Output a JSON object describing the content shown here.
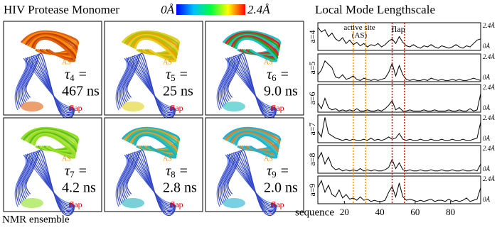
{
  "title": "HIV Protease Monomer",
  "colorbar": {
    "min_label": "0Å",
    "max_label": "2.4Å"
  },
  "panels": [
    {
      "symbol": "τ",
      "index": "4",
      "relation": "=",
      "value": "467 ns",
      "site_label": "AS",
      "flap_label": "flap"
    },
    {
      "symbol": "τ",
      "index": "5",
      "relation": "=",
      "value": "25 ns",
      "site_label": "AS",
      "flap_label": "flap"
    },
    {
      "symbol": "τ",
      "index": "6",
      "relation": "=",
      "value": "9.0 ns",
      "site_label": "AS",
      "flap_label": "flap"
    },
    {
      "symbol": "τ",
      "index": "7",
      "relation": "=",
      "value": "4.2 ns",
      "site_label": "AS",
      "flap_label": "flap"
    },
    {
      "symbol": "τ",
      "index": "8",
      "relation": "=",
      "value": "2.8 ns",
      "site_label": "AS",
      "flap_label": "flap"
    },
    {
      "symbol": "τ",
      "index": "9",
      "relation": "=",
      "value": "2.0 ns",
      "site_label": "AS",
      "flap_label": "flap"
    }
  ],
  "ensemble_label": "NMR ensemble",
  "right_title": "Local Mode Lengthscale",
  "chart_data": [
    {
      "type": "line",
      "ylabel": "a=4",
      "color": "#000000",
      "x": [
        5,
        7,
        9,
        11,
        13,
        15,
        17,
        19,
        21,
        23,
        25,
        27,
        29,
        31,
        33,
        35,
        37,
        39,
        41,
        43,
        45,
        47,
        49,
        51,
        53,
        55,
        57,
        59,
        61,
        63,
        65,
        67,
        69,
        71,
        73,
        75,
        77,
        79,
        81,
        83,
        85,
        87,
        89,
        91,
        93,
        95,
        97
      ],
      "values": [
        2.0,
        1.6,
        1.8,
        1.2,
        1.5,
        1.0,
        0.8,
        1.1,
        0.6,
        0.9,
        0.5,
        0.7,
        0.4,
        0.6,
        0.3,
        0.5,
        0.4,
        0.6,
        0.3,
        0.5,
        0.8,
        1.0,
        0.6,
        1.2,
        0.7,
        0.4,
        0.3,
        0.5,
        0.3,
        0.2,
        0.4,
        0.3,
        0.5,
        0.3,
        0.2,
        0.4,
        0.3,
        0.2,
        0.3,
        0.5,
        0.3,
        0.2,
        0.4,
        0.3,
        0.6,
        0.9,
        1.0
      ],
      "xlim": [
        5,
        97
      ],
      "ylim": [
        0,
        2.4
      ],
      "yticks": [
        {
          "value": 0,
          "label": "0Å"
        },
        {
          "value": 2.4,
          "label": "2.4Å"
        }
      ],
      "annotations": [
        {
          "text": "active site (AS)",
          "x": [
            25,
            32
          ],
          "color": "#ff8c00"
        },
        {
          "text": "flap",
          "x": [
            47,
            54
          ],
          "color": "#e00000"
        }
      ]
    },
    {
      "type": "line",
      "ylabel": "a=5",
      "color": "#000000",
      "x": [
        5,
        7,
        9,
        11,
        13,
        15,
        17,
        19,
        21,
        23,
        25,
        27,
        29,
        31,
        33,
        35,
        37,
        39,
        41,
        43,
        45,
        47,
        49,
        51,
        53,
        55,
        57,
        59,
        61,
        63,
        65,
        67,
        69,
        71,
        73,
        75,
        77,
        79,
        81,
        83,
        85,
        87,
        89,
        91,
        93,
        95,
        97
      ],
      "values": [
        0.6,
        1.0,
        1.8,
        1.5,
        1.2,
        0.4,
        0.3,
        0.6,
        0.2,
        0.3,
        0.5,
        0.2,
        0.1,
        0.3,
        0.2,
        0.1,
        0.2,
        0.1,
        0.2,
        0.3,
        0.8,
        1.6,
        0.5,
        1.4,
        0.6,
        0.2,
        0.1,
        0.2,
        0.1,
        0.1,
        0.2,
        0.1,
        0.3,
        0.2,
        0.1,
        0.2,
        0.1,
        0.1,
        0.2,
        0.1,
        0.2,
        0.1,
        0.1,
        0.2,
        0.3,
        0.2,
        0.1
      ],
      "xlim": [
        5,
        97
      ],
      "ylim": [
        0,
        2.4
      ],
      "yticks": [
        {
          "value": 0,
          "label": "0Å"
        },
        {
          "value": 2.4,
          "label": "2.4Å"
        }
      ]
    },
    {
      "type": "line",
      "ylabel": "a=6",
      "color": "#000000",
      "x": [
        5,
        7,
        9,
        11,
        13,
        15,
        17,
        19,
        21,
        23,
        25,
        27,
        29,
        31,
        33,
        35,
        37,
        39,
        41,
        43,
        45,
        47,
        49,
        51,
        53,
        55,
        57,
        59,
        61,
        63,
        65,
        67,
        69,
        71,
        73,
        75,
        77,
        79,
        81,
        83,
        85,
        87,
        89,
        91,
        93,
        95,
        97
      ],
      "values": [
        0.8,
        0.3,
        1.2,
        0.4,
        0.2,
        0.3,
        0.1,
        0.2,
        0.1,
        0.2,
        0.1,
        0.3,
        0.1,
        0.1,
        0.2,
        0.1,
        0.1,
        0.2,
        0.1,
        0.3,
        0.6,
        1.0,
        0.2,
        0.4,
        0.1,
        0.1,
        0.2,
        0.1,
        0.1,
        0.1,
        0.2,
        0.1,
        0.1,
        0.2,
        0.1,
        0.1,
        0.1,
        0.2,
        0.1,
        0.1,
        0.2,
        0.1,
        0.1,
        0.3,
        0.1,
        0.2,
        1.6
      ],
      "xlim": [
        5,
        97
      ],
      "ylim": [
        0,
        2.4
      ],
      "yticks": [
        {
          "value": 0,
          "label": "0Å"
        },
        {
          "value": 2.4,
          "label": "2.4Å"
        }
      ]
    },
    {
      "type": "line",
      "ylabel": "a=7",
      "color": "#000000",
      "x": [
        5,
        7,
        9,
        11,
        13,
        15,
        17,
        19,
        21,
        23,
        25,
        27,
        29,
        31,
        33,
        35,
        37,
        39,
        41,
        43,
        45,
        47,
        49,
        51,
        53,
        55,
        57,
        59,
        61,
        63,
        65,
        67,
        69,
        71,
        73,
        75,
        77,
        79,
        81,
        83,
        85,
        87,
        89,
        91,
        93,
        95,
        97
      ],
      "values": [
        1.0,
        0.5,
        2.2,
        0.8,
        0.6,
        0.4,
        0.3,
        0.2,
        0.3,
        0.2,
        0.3,
        0.2,
        0.2,
        0.3,
        0.2,
        0.4,
        0.2,
        0.3,
        0.2,
        0.3,
        0.5,
        0.3,
        0.4,
        0.8,
        0.3,
        0.2,
        0.3,
        0.2,
        0.2,
        0.3,
        0.2,
        0.2,
        0.3,
        0.2,
        0.2,
        0.3,
        0.2,
        0.2,
        0.3,
        0.2,
        0.2,
        0.3,
        0.2,
        0.2,
        0.3,
        0.4,
        1.8
      ],
      "xlim": [
        5,
        97
      ],
      "ylim": [
        0,
        2.4
      ],
      "yticks": [
        {
          "value": 0,
          "label": "0Å"
        },
        {
          "value": 2.4,
          "label": "2.4Å"
        }
      ]
    },
    {
      "type": "line",
      "ylabel": "a=8",
      "color": "#000000",
      "x": [
        5,
        7,
        9,
        11,
        13,
        15,
        17,
        19,
        21,
        23,
        25,
        27,
        29,
        31,
        33,
        35,
        37,
        39,
        41,
        43,
        45,
        47,
        49,
        51,
        53,
        55,
        57,
        59,
        61,
        63,
        65,
        67,
        69,
        71,
        73,
        75,
        77,
        79,
        81,
        83,
        85,
        87,
        89,
        91,
        93,
        95,
        97
      ],
      "values": [
        1.2,
        1.8,
        0.8,
        1.4,
        0.6,
        0.3,
        0.4,
        0.2,
        0.3,
        0.2,
        0.3,
        0.2,
        0.4,
        0.2,
        0.3,
        0.2,
        0.3,
        0.2,
        0.2,
        0.3,
        0.5,
        1.2,
        0.4,
        0.9,
        0.3,
        0.2,
        0.3,
        0.2,
        0.2,
        0.3,
        0.2,
        0.2,
        0.3,
        0.2,
        0.2,
        0.3,
        0.2,
        0.2,
        0.3,
        0.2,
        0.2,
        0.3,
        0.2,
        0.2,
        0.3,
        0.2,
        0.8
      ],
      "xlim": [
        5,
        97
      ],
      "ylim": [
        0,
        2.4
      ],
      "yticks": [
        {
          "value": 0,
          "label": "0Å"
        },
        {
          "value": 2.4,
          "label": "2.4Å"
        }
      ]
    },
    {
      "type": "line",
      "ylabel": "a=9",
      "color": "#000000",
      "x": [
        5,
        7,
        9,
        11,
        13,
        15,
        17,
        19,
        21,
        23,
        25,
        27,
        29,
        31,
        33,
        35,
        37,
        39,
        41,
        43,
        45,
        47,
        49,
        51,
        53,
        55,
        57,
        59,
        61,
        63,
        65,
        67,
        69,
        71,
        73,
        75,
        77,
        79,
        81,
        83,
        85,
        87,
        89,
        91,
        93,
        95,
        97
      ],
      "values": [
        1.4,
        2.0,
        1.0,
        1.6,
        0.8,
        0.6,
        1.2,
        0.5,
        0.8,
        0.4,
        0.5,
        0.3,
        0.6,
        0.3,
        0.4,
        0.2,
        0.3,
        0.2,
        0.2,
        0.3,
        1.0,
        1.5,
        0.6,
        1.8,
        0.6,
        0.3,
        0.4,
        0.3,
        0.2,
        0.3,
        0.2,
        0.3,
        0.4,
        0.2,
        0.3,
        0.3,
        0.2,
        0.4,
        0.2,
        0.3,
        0.2,
        0.3,
        0.5,
        0.2,
        0.3,
        0.4,
        1.4
      ],
      "xlim": [
        5,
        97
      ],
      "ylim": [
        0,
        2.4
      ],
      "yticks": [
        {
          "value": 0,
          "label": "0Å"
        },
        {
          "value": 2.4,
          "label": "2.4Å"
        }
      ],
      "xticks": [
        20,
        40,
        60,
        80
      ],
      "xlabel": "sequence"
    }
  ]
}
